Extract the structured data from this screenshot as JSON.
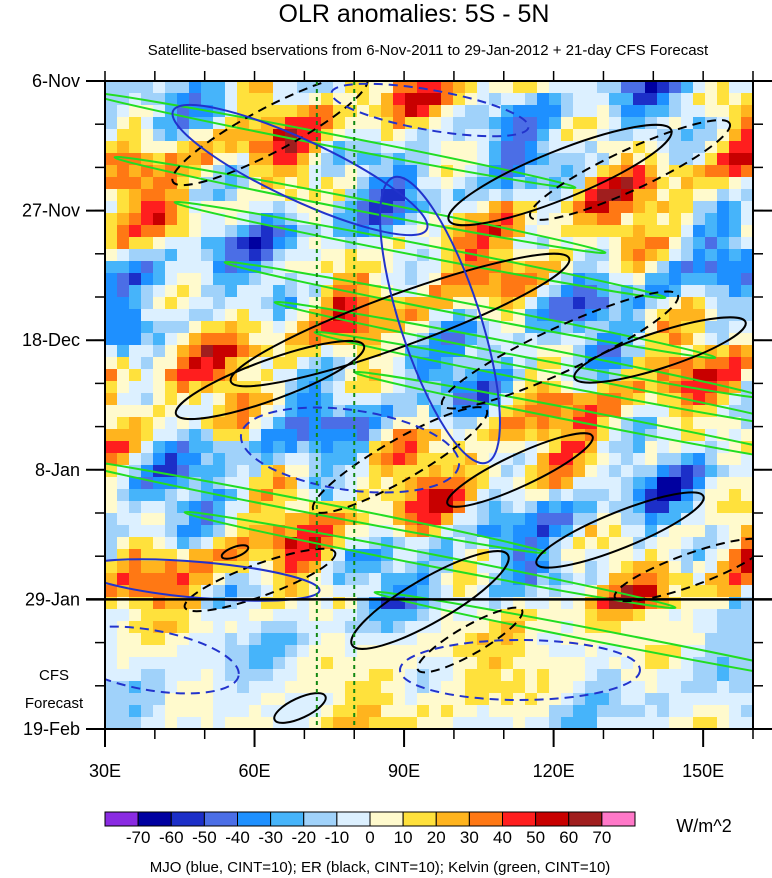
{
  "chart_data": {
    "type": "heatmap",
    "title": "OLR anomalies: 5S - 5N",
    "subtitle": "Satellite-based bservations from 6-Nov-2011 to 29-Jan-2012 + 21-day CFS Forecast",
    "x_ticks": [
      "30E",
      "60E",
      "90E",
      "120E",
      "150E"
    ],
    "x_tick_values": [
      30,
      60,
      90,
      120,
      150
    ],
    "xlim": [
      30,
      160
    ],
    "y_ticks": [
      "6-Nov",
      "27-Nov",
      "18-Dec",
      "8-Jan",
      "29-Jan",
      "19-Feb"
    ],
    "y_tick_values": [
      "2011-11-06",
      "2011-11-27",
      "2011-12-18",
      "2012-01-08",
      "2012-01-29",
      "2012-02-19"
    ],
    "ylim": [
      "2011-11-06",
      "2012-02-19"
    ],
    "forecast_label": [
      "CFS",
      "Forecast"
    ],
    "forecast_start": "2012-01-29",
    "colorbar": {
      "tick_labels": [
        "-70",
        "-60",
        "-50",
        "-40",
        "-30",
        "-20",
        "-10",
        "0",
        "10",
        "20",
        "30",
        "40",
        "50",
        "60",
        "70"
      ],
      "units": "W/m^2",
      "colors": [
        "#8a2be2",
        "#0000a0",
        "#1c2fc8",
        "#4b6ee6",
        "#1e90ff",
        "#46b4fa",
        "#a0d2fa",
        "#dcf0ff",
        "#fffacd",
        "#ffe13c",
        "#ffb41e",
        "#ff7814",
        "#ff1e1e",
        "#c80000",
        "#a01e1e",
        "#ff78c8"
      ]
    },
    "reference_lines_lon": [
      72.5,
      80
    ],
    "contours_legend": "MJO (blue, CINT=10); ER (black, CINT=10); Kelvin (green, CINT=10)",
    "series_colors": {
      "MJO": "#2233cc",
      "ER": "#000000",
      "Kelvin": "#22dd22"
    }
  }
}
